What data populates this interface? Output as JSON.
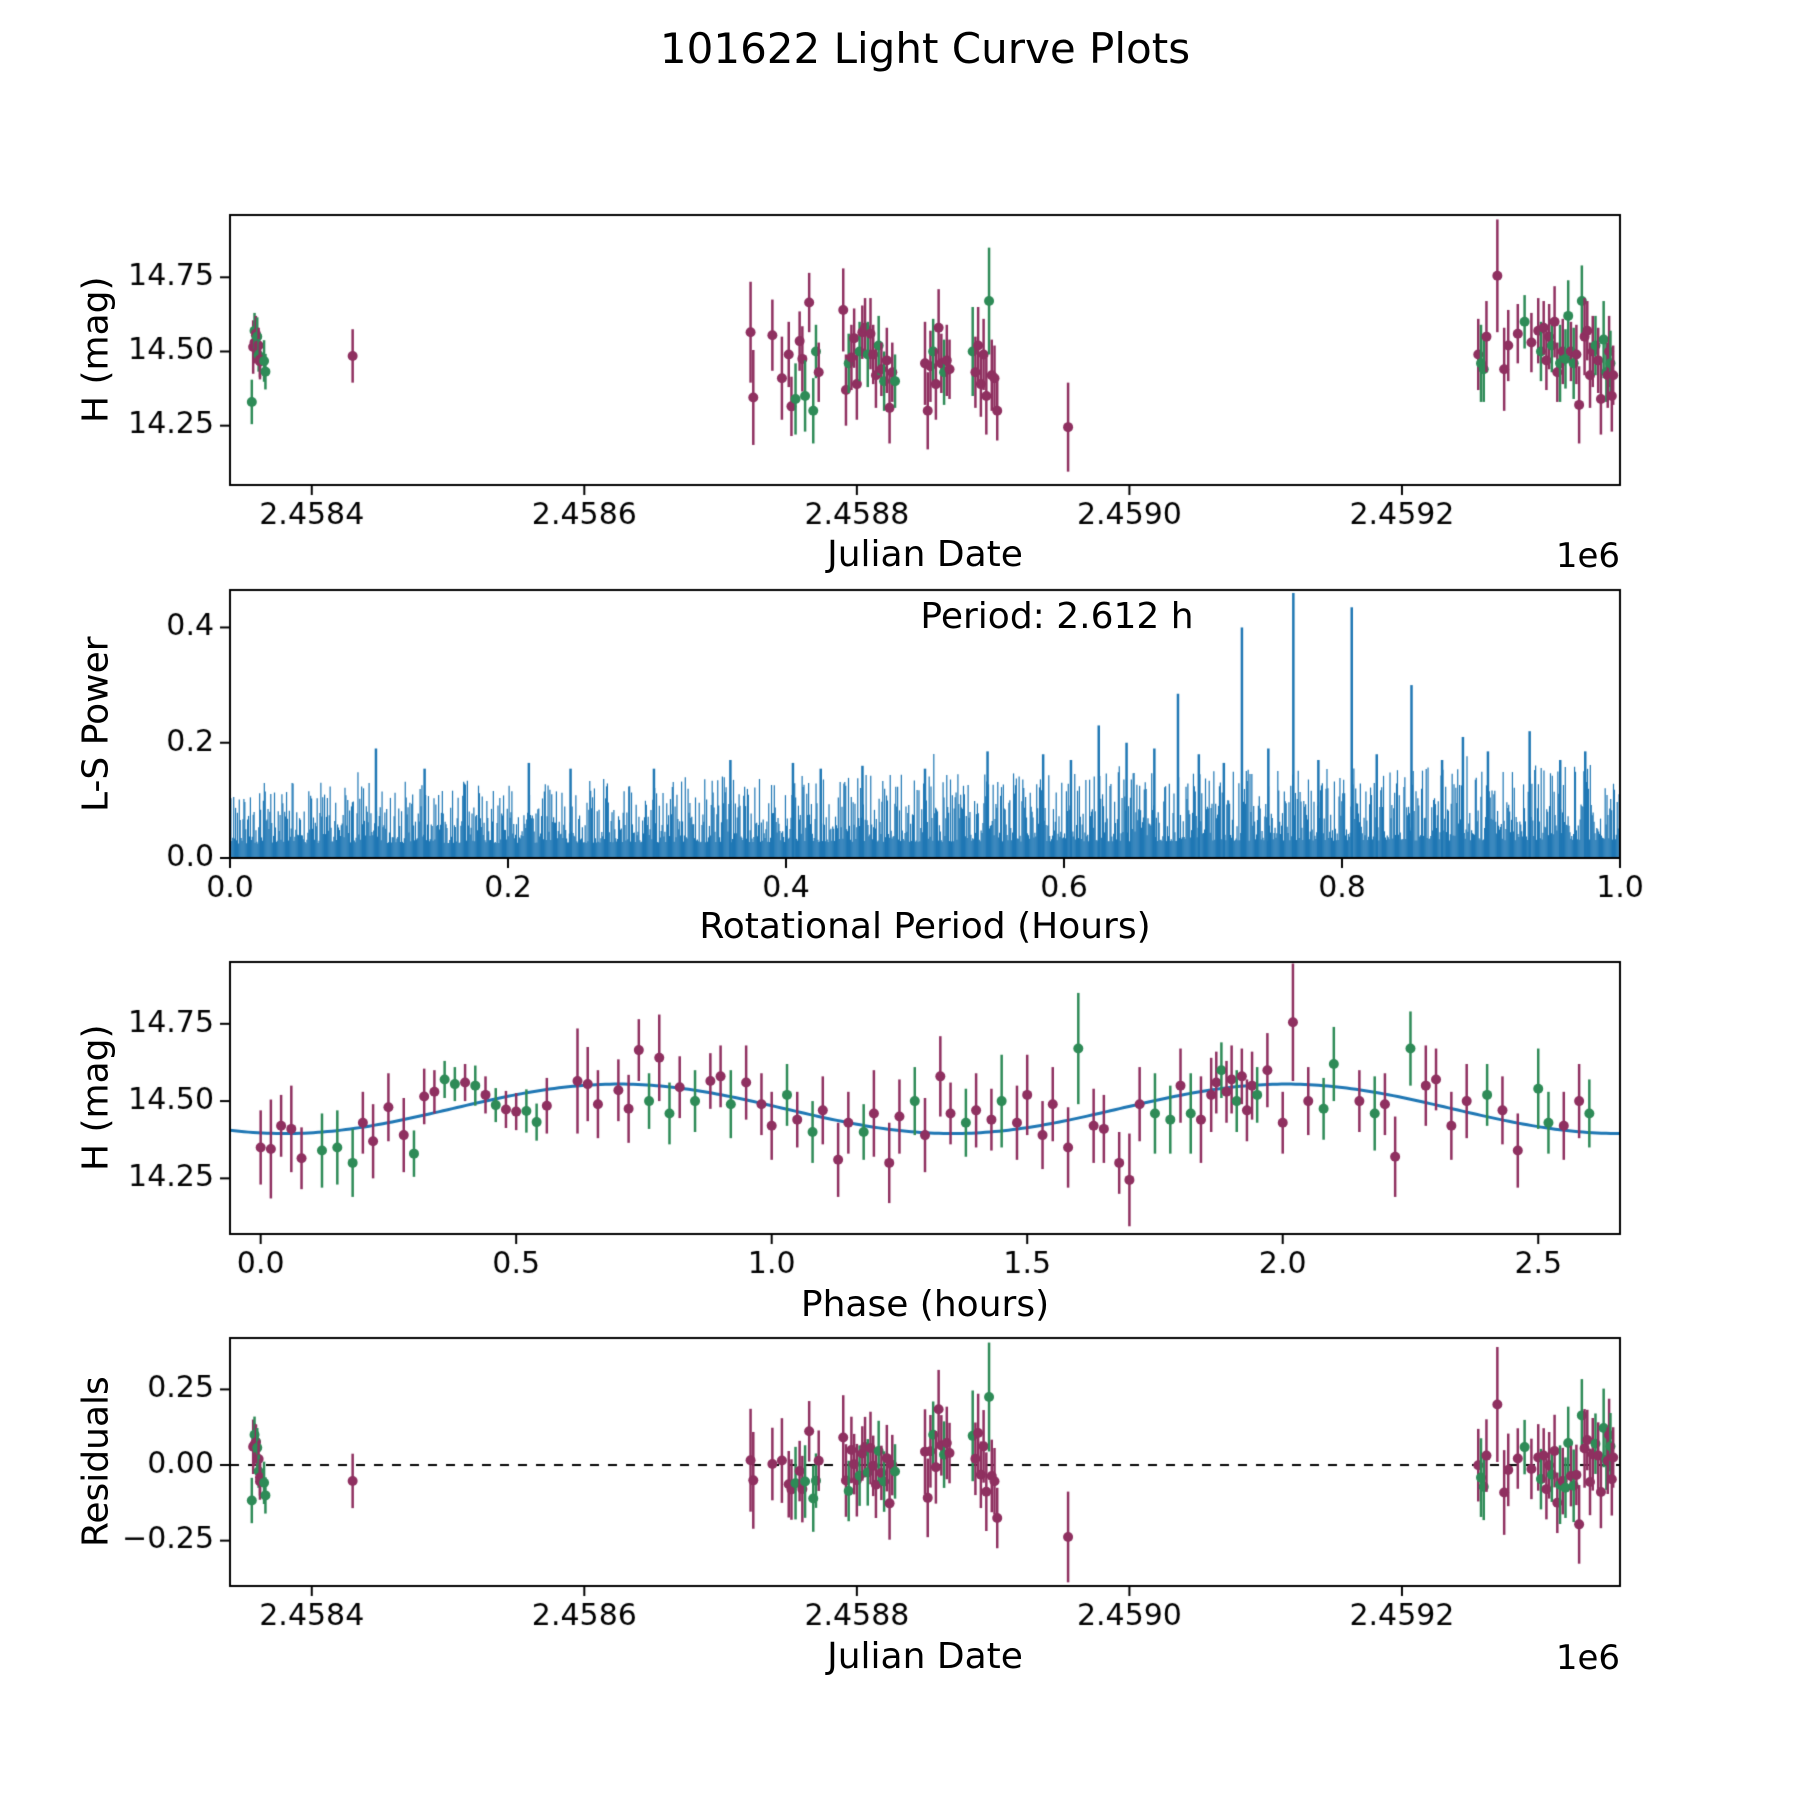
{
  "title": "101622 Light Curve Plots",
  "colors": {
    "blue": "#1f77b4",
    "purple": "#8f3060",
    "green": "#2e8b57",
    "frame": "#000000"
  },
  "model": {
    "mean": 14.475,
    "amplitude": 0.08,
    "fit_period_hours": 1.306,
    "phase_of_max": 0.7,
    "rotation_period_hours": 2.612
  },
  "observations": [
    [
      2458356,
      0.3,
      14.33,
      0.075,
      "g"
    ],
    [
      2458357,
      0.32,
      14.515,
      0.09,
      "p"
    ],
    [
      2458358,
      0.34,
      14.53,
      0.07,
      "p"
    ],
    [
      2458358,
      0.36,
      14.57,
      0.06,
      "g"
    ],
    [
      2458359,
      0.38,
      14.555,
      0.055,
      "g"
    ],
    [
      2458359,
      0.4,
      14.56,
      0.06,
      "p"
    ],
    [
      2458360,
      0.42,
      14.55,
      0.065,
      "g"
    ],
    [
      2458361,
      0.44,
      14.52,
      0.06,
      "p"
    ],
    [
      2458361,
      0.46,
      14.487,
      0.055,
      "g"
    ],
    [
      2458362,
      0.48,
      14.473,
      0.06,
      "p"
    ],
    [
      2458362,
      0.5,
      14.466,
      0.06,
      "p"
    ],
    [
      2458365,
      0.52,
      14.468,
      0.07,
      "g"
    ],
    [
      2458366,
      0.54,
      14.432,
      0.06,
      "g"
    ],
    [
      2458430,
      0.56,
      14.485,
      0.09,
      "p"
    ],
    [
      2458722,
      0.62,
      14.565,
      0.17,
      "p"
    ],
    [
      2458724,
      0.02,
      14.345,
      0.16,
      "p"
    ],
    [
      2458738,
      0.64,
      14.555,
      0.12,
      "p"
    ],
    [
      2458745,
      0.06,
      14.41,
      0.14,
      "p"
    ],
    [
      2458750,
      0.66,
      14.49,
      0.11,
      "p"
    ],
    [
      2458752,
      0.08,
      14.315,
      0.1,
      "p"
    ],
    [
      2458755,
      0.12,
      14.34,
      0.12,
      "g"
    ],
    [
      2458758,
      0.7,
      14.535,
      0.1,
      "p"
    ],
    [
      2458760,
      0.72,
      14.475,
      0.11,
      "p"
    ],
    [
      2458762,
      0.15,
      14.35,
      0.12,
      "g"
    ],
    [
      2458765,
      0.74,
      14.665,
      0.1,
      "p"
    ],
    [
      2458768,
      0.18,
      14.3,
      0.11,
      "g"
    ],
    [
      2458770,
      0.76,
      14.5,
      0.09,
      "g"
    ],
    [
      2458772,
      0.2,
      14.43,
      0.1,
      "p"
    ],
    [
      2458790,
      0.78,
      14.64,
      0.14,
      "p"
    ],
    [
      2458792,
      0.22,
      14.37,
      0.12,
      "p"
    ],
    [
      2458794,
      0.8,
      14.46,
      0.1,
      "g"
    ],
    [
      2458796,
      0.25,
      14.48,
      0.11,
      "p"
    ],
    [
      2458798,
      0.82,
      14.545,
      0.1,
      "p"
    ],
    [
      2458800,
      0.28,
      14.39,
      0.12,
      "p"
    ],
    [
      2458802,
      0.85,
      14.5,
      0.1,
      "g"
    ],
    [
      2458804,
      0.88,
      14.565,
      0.09,
      "p"
    ],
    [
      2458806,
      0.9,
      14.58,
      0.1,
      "p"
    ],
    [
      2458808,
      0.92,
      14.49,
      0.11,
      "g"
    ],
    [
      2458810,
      0.95,
      14.56,
      0.12,
      "p"
    ],
    [
      2458812,
      0.98,
      14.49,
      0.1,
      "p"
    ],
    [
      2458814,
      1.0,
      14.42,
      0.11,
      "p"
    ],
    [
      2458816,
      1.03,
      14.52,
      0.1,
      "g"
    ],
    [
      2458818,
      1.05,
      14.44,
      0.09,
      "p"
    ],
    [
      2458820,
      1.08,
      14.4,
      0.1,
      "g"
    ],
    [
      2458822,
      1.1,
      14.47,
      0.11,
      "p"
    ],
    [
      2458824,
      1.13,
      14.31,
      0.12,
      "p"
    ],
    [
      2458826,
      1.15,
      14.43,
      0.1,
      "p"
    ],
    [
      2458828,
      1.18,
      14.4,
      0.09,
      "g"
    ],
    [
      2458850,
      1.2,
      14.46,
      0.14,
      "p"
    ],
    [
      2458852,
      1.23,
      14.3,
      0.13,
      "p"
    ],
    [
      2458854,
      1.25,
      14.45,
      0.12,
      "p"
    ],
    [
      2458856,
      1.28,
      14.5,
      0.11,
      "g"
    ],
    [
      2458858,
      1.3,
      14.39,
      0.12,
      "p"
    ],
    [
      2458860,
      1.33,
      14.58,
      0.13,
      "p"
    ],
    [
      2458862,
      1.35,
      14.46,
      0.1,
      "p"
    ],
    [
      2458864,
      1.38,
      14.43,
      0.11,
      "g"
    ],
    [
      2458866,
      1.4,
      14.47,
      0.12,
      "p"
    ],
    [
      2458868,
      1.43,
      14.44,
      0.1,
      "p"
    ],
    [
      2458885,
      1.45,
      14.5,
      0.15,
      "g"
    ],
    [
      2458887,
      1.48,
      14.43,
      0.12,
      "p"
    ],
    [
      2458889,
      1.5,
      14.52,
      0.13,
      "p"
    ],
    [
      2458891,
      1.53,
      14.39,
      0.11,
      "p"
    ],
    [
      2458893,
      1.55,
      14.49,
      0.12,
      "p"
    ],
    [
      2458895,
      1.58,
      14.35,
      0.13,
      "p"
    ],
    [
      2458897,
      1.6,
      14.67,
      0.18,
      "g"
    ],
    [
      2458899,
      1.63,
      14.42,
      0.12,
      "p"
    ],
    [
      2458901,
      1.65,
      14.41,
      0.11,
      "p"
    ],
    [
      2458903,
      1.68,
      14.3,
      0.1,
      "p"
    ],
    [
      2458955,
      1.7,
      14.245,
      0.15,
      "p"
    ],
    [
      2459256,
      1.72,
      14.49,
      0.12,
      "p"
    ],
    [
      2459258,
      1.75,
      14.46,
      0.13,
      "g"
    ],
    [
      2459260,
      1.78,
      14.44,
      0.11,
      "g"
    ],
    [
      2459262,
      1.8,
      14.55,
      0.12,
      "p"
    ],
    [
      2459270,
      2.02,
      14.755,
      0.19,
      "p"
    ],
    [
      2459275,
      1.84,
      14.44,
      0.14,
      "p"
    ],
    [
      2459278,
      1.86,
      14.52,
      0.12,
      "p"
    ],
    [
      2459285,
      1.87,
      14.56,
      0.1,
      "p"
    ],
    [
      2459290,
      1.88,
      14.6,
      0.09,
      "g"
    ],
    [
      2459295,
      1.89,
      14.53,
      0.1,
      "p"
    ],
    [
      2459300,
      1.9,
      14.57,
      0.11,
      "p"
    ],
    [
      2459302,
      1.91,
      14.5,
      0.1,
      "g"
    ],
    [
      2459304,
      1.92,
      14.58,
      0.09,
      "p"
    ],
    [
      2459306,
      1.93,
      14.47,
      0.1,
      "p"
    ],
    [
      2459308,
      1.94,
      14.55,
      0.11,
      "p"
    ],
    [
      2459310,
      1.95,
      14.52,
      0.09,
      "g"
    ],
    [
      2459312,
      1.97,
      14.6,
      0.12,
      "p"
    ],
    [
      2459314,
      2.0,
      14.43,
      0.1,
      "p"
    ],
    [
      2459316,
      1.82,
      14.46,
      0.13,
      "g"
    ],
    [
      2459318,
      2.05,
      14.5,
      0.11,
      "p"
    ],
    [
      2459320,
      2.08,
      14.475,
      0.1,
      "g"
    ],
    [
      2459322,
      2.1,
      14.62,
      0.12,
      "g"
    ],
    [
      2459324,
      2.15,
      14.5,
      0.1,
      "p"
    ],
    [
      2459326,
      2.18,
      14.46,
      0.12,
      "g"
    ],
    [
      2459328,
      2.2,
      14.49,
      0.1,
      "p"
    ],
    [
      2459330,
      2.22,
      14.32,
      0.13,
      "p"
    ],
    [
      2459332,
      2.25,
      14.67,
      0.12,
      "g"
    ],
    [
      2459334,
      2.28,
      14.55,
      0.13,
      "p"
    ],
    [
      2459336,
      2.3,
      14.57,
      0.1,
      "p"
    ],
    [
      2459338,
      2.33,
      14.42,
      0.11,
      "p"
    ],
    [
      2459340,
      2.36,
      14.5,
      0.12,
      "p"
    ],
    [
      2459342,
      2.4,
      14.52,
      0.1,
      "g"
    ],
    [
      2459344,
      2.43,
      14.47,
      0.11,
      "p"
    ],
    [
      2459346,
      2.46,
      14.34,
      0.12,
      "p"
    ],
    [
      2459348,
      2.5,
      14.54,
      0.13,
      "g"
    ],
    [
      2459350,
      2.52,
      14.43,
      0.1,
      "g"
    ],
    [
      2459351,
      2.55,
      14.42,
      0.11,
      "p"
    ],
    [
      2459352,
      2.58,
      14.5,
      0.12,
      "p"
    ],
    [
      2459353,
      2.6,
      14.46,
      0.11,
      "g"
    ],
    [
      2459354,
      0.0,
      14.35,
      0.12,
      "p"
    ],
    [
      2459355,
      0.04,
      14.42,
      0.1,
      "p"
    ]
  ],
  "chart_data": [
    {
      "id": "lightcurve",
      "type": "scatter",
      "title": "",
      "xlabel": "Julian Date",
      "ylabel": "H (mag)",
      "x_offset_label": "1e6",
      "xlim": [
        2458340,
        2459360
      ],
      "ylim": [
        14.05,
        14.96
      ],
      "xticks": [
        2458400,
        2458600,
        2458800,
        2459000,
        2459200
      ],
      "xtick_labels": [
        "2.4584",
        "2.4586",
        "2.4588",
        "2.4590",
        "2.4592"
      ],
      "yticks": [
        14.25,
        14.5,
        14.75
      ],
      "ytick_labels": [
        "14.25",
        "14.50",
        "14.75"
      ],
      "series_note": "errorbar scatter of observations: x=jd, y=mag, yerr=err; point colors green/purple"
    },
    {
      "id": "periodogram",
      "type": "line",
      "title": "",
      "xlabel": "Rotational Period (Hours)",
      "ylabel": "L-S Power",
      "annotation": "Period: 2.612 h",
      "xlim": [
        0,
        1.0
      ],
      "ylim": [
        0,
        0.465
      ],
      "xticks": [
        0,
        0.2,
        0.4,
        0.6,
        0.8,
        1.0
      ],
      "xtick_labels": [
        "0.0",
        "0.2",
        "0.4",
        "0.6",
        "0.8",
        "1.0"
      ],
      "yticks": [
        0.0,
        0.2,
        0.4
      ],
      "ytick_labels": [
        "0.0",
        "0.2",
        "0.4"
      ],
      "peaks": [
        [
          0.105,
          0.19
        ],
        [
          0.14,
          0.155
        ],
        [
          0.215,
          0.165
        ],
        [
          0.245,
          0.155
        ],
        [
          0.305,
          0.155
        ],
        [
          0.36,
          0.17
        ],
        [
          0.405,
          0.165
        ],
        [
          0.425,
          0.155
        ],
        [
          0.455,
          0.16
        ],
        [
          0.5,
          0.155
        ],
        [
          0.545,
          0.185
        ],
        [
          0.585,
          0.18
        ],
        [
          0.605,
          0.17
        ],
        [
          0.625,
          0.23
        ],
        [
          0.645,
          0.2
        ],
        [
          0.665,
          0.19
        ],
        [
          0.682,
          0.285
        ],
        [
          0.697,
          0.18
        ],
        [
          0.715,
          0.165
        ],
        [
          0.728,
          0.4
        ],
        [
          0.747,
          0.19
        ],
        [
          0.765,
          0.46
        ],
        [
          0.783,
          0.17
        ],
        [
          0.807,
          0.435
        ],
        [
          0.825,
          0.18
        ],
        [
          0.85,
          0.3
        ],
        [
          0.872,
          0.17
        ],
        [
          0.887,
          0.21
        ],
        [
          0.905,
          0.185
        ],
        [
          0.935,
          0.22
        ],
        [
          0.957,
          0.17
        ],
        [
          0.975,
          0.185
        ]
      ],
      "noise": {
        "seed": 42,
        "count": 1500,
        "base": 0.025,
        "scale": 0.105,
        "exponent": 1.8,
        "spike_prob": 0.03,
        "spike_scale": 0.05,
        "trend": 0.25
      }
    },
    {
      "id": "phase",
      "type": "scatter",
      "title": "",
      "xlabel": "Phase (hours)",
      "ylabel": "H (mag)",
      "xlim": [
        -0.06,
        2.66
      ],
      "ylim": [
        14.07,
        14.95
      ],
      "xticks": [
        0,
        0.5,
        1.0,
        1.5,
        2.0,
        2.5
      ],
      "xtick_labels": [
        "0.0",
        "0.5",
        "1.0",
        "1.5",
        "2.0",
        "2.5"
      ],
      "yticks": [
        14.25,
        14.5,
        14.75
      ],
      "ytick_labels": [
        "14.25",
        "14.50",
        "14.75"
      ],
      "fit_note": "blue sinusoidal fit: mean 14.475, amplitude 0.08 mag, two maxima per 2.612 h rotation"
    },
    {
      "id": "residuals",
      "type": "scatter",
      "title": "",
      "xlabel": "Julian Date",
      "ylabel": "Residuals",
      "x_offset_label": "1e6",
      "xlim": [
        2458340,
        2459360
      ],
      "ylim": [
        -0.4,
        0.42
      ],
      "xticks": [
        2458400,
        2458600,
        2458800,
        2459000,
        2459200
      ],
      "xtick_labels": [
        "2.4584",
        "2.4586",
        "2.4588",
        "2.4590",
        "2.4592"
      ],
      "yticks": [
        -0.25,
        0.0,
        0.25
      ],
      "ytick_labels": [
        "−0.25",
        "0.00",
        "0.25"
      ],
      "zero_line": true,
      "series_note": "residual = observed mag - model(phase); dashed line at 0"
    }
  ]
}
